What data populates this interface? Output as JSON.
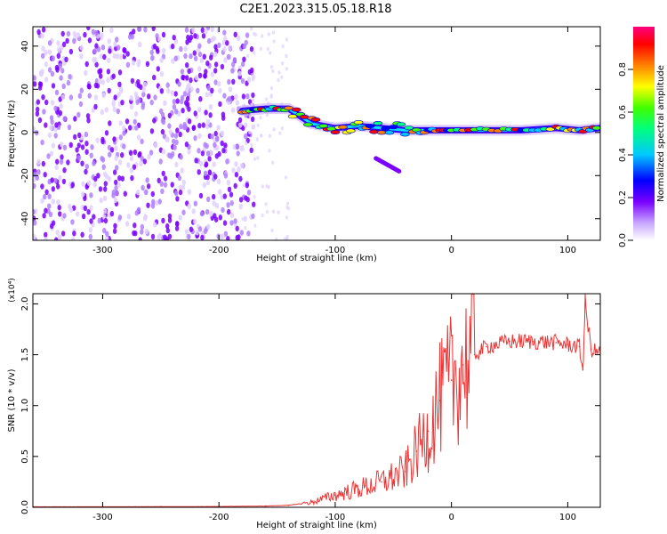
{
  "title": "C2E1.2023.315.05.18.R18",
  "chart_data": [
    {
      "type": "heatmap",
      "xlabel": "Height of straight line (km)",
      "ylabel": "Frequency (Hz)",
      "xlim": [
        -360,
        128
      ],
      "ylim": [
        -50,
        49
      ],
      "xticks": [
        -300,
        -200,
        -100,
        0,
        100
      ],
      "yticks": [
        -40,
        -20,
        0,
        20,
        40
      ],
      "colorbar": {
        "label": "Normalized spectral amplitude",
        "range": [
          0,
          1
        ],
        "ticks": [
          0.0,
          0.2,
          0.4,
          0.6,
          0.8
        ],
        "colormap": [
          "#ffffff",
          "#c8a8ff",
          "#7a00ff",
          "#0000ff",
          "#00c8ff",
          "#00ff80",
          "#40ff00",
          "#ffff00",
          "#ff8000",
          "#ff0000",
          "#ff0080"
        ]
      },
      "features": [
        {
          "name": "noise region",
          "x_range": [
            -360,
            -180
          ],
          "freq_range": [
            -50,
            49
          ],
          "amplitude": 0.1
        },
        {
          "name": "signal trace",
          "points": [
            [
              -180,
              10
            ],
            [
              -160,
              11
            ],
            [
              -140,
              11
            ],
            [
              -120,
              4
            ],
            [
              -100,
              2
            ],
            [
              -80,
              3
            ],
            [
              -60,
              2
            ],
            [
              -40,
              1
            ],
            [
              -20,
              1
            ],
            [
              0,
              1
            ],
            [
              30,
              1
            ],
            [
              60,
              1
            ],
            [
              90,
              2
            ],
            [
              110,
              1
            ],
            [
              128,
              2
            ]
          ],
          "amplitude_range": [
            0.3,
            0.95
          ]
        },
        {
          "name": "branch",
          "points": [
            [
              -65,
              -12
            ],
            [
              -55,
              -15
            ],
            [
              -45,
              -18
            ]
          ],
          "amplitude": 0.2
        }
      ]
    },
    {
      "type": "line",
      "xlabel": "Height of straight line (km)",
      "ylabel": "SNR (10 * v/v)",
      "y_scale_label": "(x10⁴)",
      "xlim": [
        -360,
        128
      ],
      "ylim": [
        0,
        2.1
      ],
      "xticks": [
        -300,
        -200,
        -100,
        0,
        100
      ],
      "yticks": [
        0.0,
        0.5,
        1.0,
        1.5,
        2.0
      ],
      "series": [
        {
          "color": "#ee3333",
          "x": [
            -360,
            -300,
            -250,
            -200,
            -160,
            -140,
            -120,
            -100,
            -80,
            -60,
            -40,
            -30,
            -20,
            -10,
            0,
            10,
            20,
            30,
            50,
            70,
            90,
            100,
            110,
            113,
            115,
            120,
            128
          ],
          "y": [
            0.005,
            0.005,
            0.006,
            0.008,
            0.012,
            0.02,
            0.05,
            0.12,
            0.18,
            0.25,
            0.35,
            0.55,
            0.75,
            1.05,
            1.25,
            1.4,
            1.5,
            1.58,
            1.63,
            1.63,
            1.62,
            1.6,
            1.58,
            1.35,
            2.0,
            1.55,
            1.52
          ]
        }
      ]
    }
  ]
}
